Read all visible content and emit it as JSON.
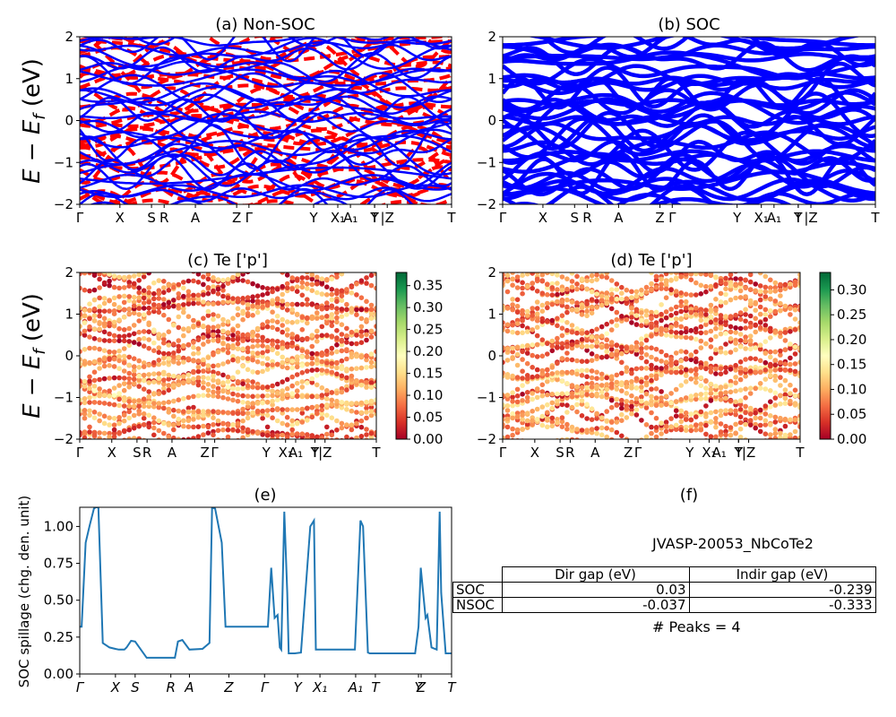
{
  "figure": {
    "material_label": "JVASP-20053_NbCoTe2",
    "peaks_label": "# Peaks = 4"
  },
  "colors": {
    "nonsoc_band": "#ff0000",
    "soc_band": "#0000ff",
    "spillage_line": "#1f77b4",
    "colormap": [
      "#a50026",
      "#d73027",
      "#f46d43",
      "#fdae61",
      "#fee08b",
      "#ffffbf",
      "#d9ef8b",
      "#a6d96a",
      "#66bd63",
      "#1a9850",
      "#006837"
    ]
  },
  "gap_table": {
    "columns": [
      "Dir gap (eV)",
      "Indir gap (eV)"
    ],
    "rows": [
      {
        "label": "SOC",
        "dir": "0.03",
        "indir": "-0.239"
      },
      {
        "label": "NSOC",
        "dir": "-0.037",
        "indir": "-0.333"
      }
    ]
  },
  "chart_data": [
    {
      "id": "a",
      "type": "line",
      "title": "(a) Non-SOC",
      "ylabel": "E − E_f (eV)",
      "ylim": [
        -2,
        2
      ],
      "yticks": [
        "−2",
        "−1",
        "0",
        "1",
        "2"
      ],
      "kpath_ticks": [
        {
          "label": "Γ",
          "pos": 0.0
        },
        {
          "label": "X",
          "pos": 0.108
        },
        {
          "label": "S",
          "pos": 0.193
        },
        {
          "label": "R",
          "pos": 0.227
        },
        {
          "label": "A",
          "pos": 0.311
        },
        {
          "label": "Z",
          "pos": 0.422
        },
        {
          "label": "Γ",
          "pos": 0.455
        },
        {
          "label": "Y",
          "pos": 0.629
        },
        {
          "label": "X₁",
          "pos": 0.694
        },
        {
          "label": "A₁",
          "pos": 0.728
        },
        {
          "label": "T",
          "pos": 0.793
        },
        {
          "label": "Y",
          "pos": 0.793
        },
        {
          "label": "|Z",
          "pos": 0.827
        },
        {
          "label": "T",
          "pos": 1.0
        }
      ],
      "series": [
        {
          "name": "Non-SOC bands (dashed)",
          "color": "#ff0000",
          "style": "dashed"
        },
        {
          "name": "SOC bands",
          "color": "#0000ff",
          "style": "solid"
        }
      ]
    },
    {
      "id": "b",
      "type": "line",
      "title": "(b) SOC",
      "ylim": [
        -2,
        2
      ],
      "yticks": [
        "−2",
        "−1",
        "0",
        "1",
        "2"
      ],
      "kpath_ticks_same_as": "a",
      "series": [
        {
          "name": "SOC bands",
          "color": "#0000ff",
          "style": "solid"
        }
      ]
    },
    {
      "id": "c",
      "type": "scatter",
      "title": "(c)  Te ['p']",
      "ylabel": "E − E_f (eV)",
      "ylim": [
        -2,
        2
      ],
      "yticks": [
        "−2",
        "−1",
        "0",
        "1",
        "2"
      ],
      "kpath_ticks_same_as": "a",
      "colorbar": {
        "range": [
          0,
          0.38
        ],
        "ticks": [
          "0.00",
          "0.05",
          "0.10",
          "0.15",
          "0.20",
          "0.25",
          "0.30",
          "0.35"
        ],
        "cmap": "RdYlGn"
      }
    },
    {
      "id": "d",
      "type": "scatter",
      "title": "(d) Te ['p']",
      "ylim": [
        -2,
        2
      ],
      "yticks": [
        "−2",
        "−1",
        "0",
        "1",
        "2"
      ],
      "kpath_ticks_same_as": "a",
      "colorbar": {
        "range": [
          0,
          0.335
        ],
        "ticks": [
          "0.00",
          "0.05",
          "0.10",
          "0.15",
          "0.20",
          "0.25",
          "0.30"
        ],
        "cmap": "RdYlGn"
      }
    },
    {
      "id": "e",
      "type": "line",
      "title": "(e)",
      "ylabel": "SOC spillage (chg. den. unit)",
      "ylim": [
        0,
        1.13
      ],
      "yticks": [
        "0.00",
        "0.25",
        "0.50",
        "0.75",
        "1.00"
      ],
      "ytick_values": [
        0,
        0.25,
        0.5,
        0.75,
        1.0
      ],
      "xticks": [
        {
          "label": "Γ",
          "pos": 0.0
        },
        {
          "label": "X",
          "pos": 0.096
        },
        {
          "label": "S",
          "pos": 0.149
        },
        {
          "label": "R",
          "pos": 0.245
        },
        {
          "label": "A",
          "pos": 0.295
        },
        {
          "label": "Z",
          "pos": 0.401
        },
        {
          "label": "Γ",
          "pos": 0.497
        },
        {
          "label": "Y",
          "pos": 0.586
        },
        {
          "label": "X₁",
          "pos": 0.646
        },
        {
          "label": "A₁",
          "pos": 0.742
        },
        {
          "label": "T",
          "pos": 0.795
        },
        {
          "label": "Y",
          "pos": 0.911
        },
        {
          "label": "Z",
          "pos": 0.918
        },
        {
          "label": "T",
          "pos": 1.0
        }
      ],
      "series": [
        {
          "name": "SOC spillage",
          "color": "#1f77b4",
          "x": [
            0.0,
            0.005,
            0.016,
            0.027,
            0.038,
            0.043,
            0.05,
            0.062,
            0.08,
            0.096,
            0.105,
            0.12,
            0.126,
            0.138,
            0.149,
            0.18,
            0.24,
            0.256,
            0.264,
            0.276,
            0.295,
            0.33,
            0.349,
            0.356,
            0.364,
            0.382,
            0.392,
            0.396,
            0.42,
            0.506,
            0.515,
            0.524,
            0.532,
            0.538,
            0.542,
            0.55,
            0.558,
            0.562,
            0.572,
            0.578,
            0.595,
            0.62,
            0.63,
            0.635,
            0.645,
            0.65,
            0.662,
            0.74,
            0.755,
            0.762,
            0.775,
            0.78,
            0.8,
            0.88,
            0.902,
            0.911,
            0.917,
            0.93,
            0.935,
            0.946,
            0.96,
            0.968,
            0.972,
            0.984,
            1.0
          ],
          "y": [
            0.32,
            0.32,
            0.89,
            1.01,
            1.12,
            1.13,
            1.13,
            0.21,
            0.18,
            0.17,
            0.165,
            0.165,
            0.18,
            0.225,
            0.22,
            0.11,
            0.11,
            0.11,
            0.22,
            0.23,
            0.165,
            0.17,
            0.21,
            1.13,
            1.12,
            0.89,
            0.32,
            0.32,
            0.32,
            0.32,
            0.72,
            0.38,
            0.4,
            0.18,
            0.165,
            1.1,
            0.55,
            0.14,
            0.14,
            0.14,
            0.145,
            1.0,
            1.04,
            0.165,
            0.165,
            0.165,
            0.165,
            0.165,
            1.04,
            1.0,
            0.145,
            0.14,
            0.14,
            0.14,
            0.14,
            0.32,
            0.72,
            0.38,
            0.4,
            0.18,
            0.165,
            1.1,
            0.55,
            0.14,
            0.14
          ]
        }
      ]
    },
    {
      "id": "f",
      "type": "table",
      "title": "(f)"
    }
  ]
}
